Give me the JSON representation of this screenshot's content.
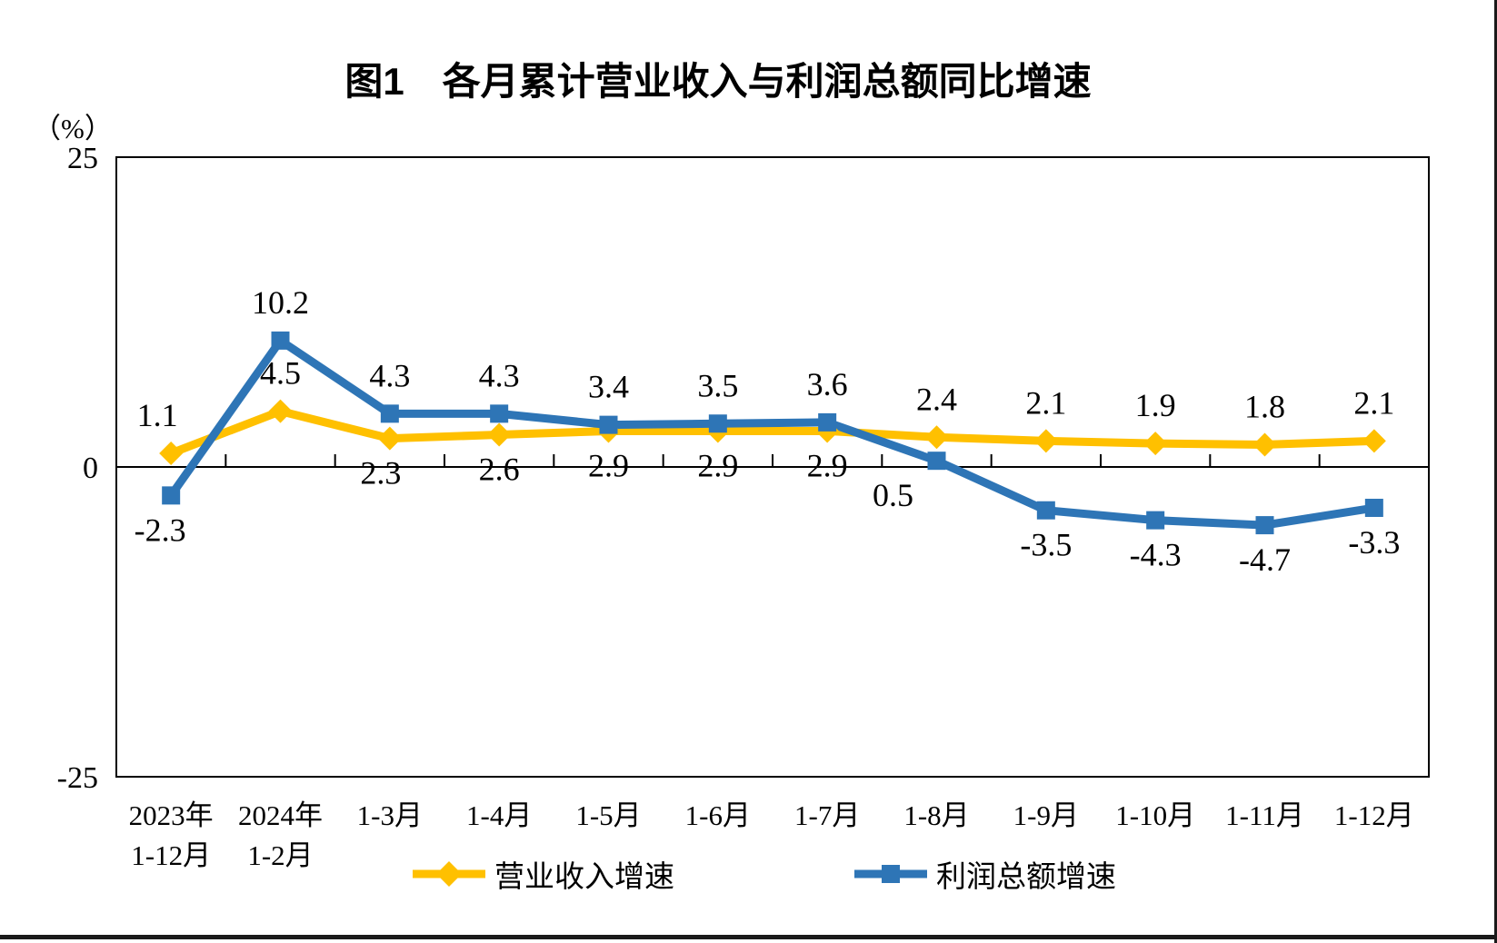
{
  "chart_data": {
    "type": "line",
    "title": "图1　各月累计营业收入与利润总额同比增速",
    "unit_label": "（%）",
    "categories": [
      [
        "2023年",
        "1-12月"
      ],
      [
        "2024年",
        "1-2月"
      ],
      [
        "1-3月"
      ],
      [
        "1-4月"
      ],
      [
        "1-5月"
      ],
      [
        "1-6月"
      ],
      [
        "1-7月"
      ],
      [
        "1-8月"
      ],
      [
        "1-9月"
      ],
      [
        "1-10月"
      ],
      [
        "1-11月"
      ],
      [
        "1-12月"
      ]
    ],
    "series": [
      {
        "id": "revenue",
        "name": "营业收入增速",
        "color": "#FFC000",
        "marker": "diamond",
        "values": [
          1.1,
          4.5,
          2.3,
          2.6,
          2.9,
          2.9,
          2.9,
          2.4,
          2.1,
          1.9,
          1.8,
          2.1
        ],
        "label_side": [
          "above",
          "above",
          "below",
          "below",
          "below",
          "below",
          "below",
          "above",
          "above",
          "above",
          "above",
          "above"
        ],
        "label_dx": [
          -15,
          0,
          -10,
          0,
          0,
          0,
          0,
          0,
          0,
          0,
          0,
          0
        ]
      },
      {
        "id": "profit",
        "name": "利润总额增速",
        "color": "#2E75B6",
        "marker": "square",
        "values": [
          -2.3,
          10.2,
          4.3,
          4.3,
          3.4,
          3.5,
          3.6,
          0.5,
          -3.5,
          -4.3,
          -4.7,
          -3.3
        ],
        "label_side": [
          "below",
          "above",
          "above",
          "above",
          "above",
          "above",
          "above",
          "below",
          "below",
          "below",
          "below",
          "below"
        ],
        "label_dx": [
          -12,
          0,
          0,
          0,
          0,
          0,
          0,
          -48,
          0,
          0,
          0,
          0
        ]
      }
    ],
    "y_axis": {
      "min": -25,
      "max": 25,
      "ticks": [
        25,
        0,
        -25
      ]
    },
    "legend_position": "bottom",
    "grid": false
  }
}
